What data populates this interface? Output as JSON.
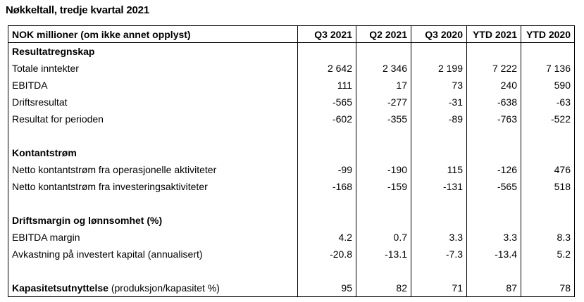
{
  "title": "Nøkkeltall, tredje kvartal 2021",
  "header": {
    "label": "NOK millioner (om ikke annet opplyst)",
    "columns": [
      "Q3 2021",
      "Q2 2021",
      "Q3 2020",
      "YTD 2021",
      "YTD 2020"
    ]
  },
  "sections": {
    "income": {
      "label": "Resultatregnskap",
      "rows": [
        {
          "label": "Totale inntekter",
          "values": [
            "2 642",
            "2 346",
            "2 199",
            "7 222",
            "7 136"
          ]
        },
        {
          "label": "EBITDA",
          "values": [
            "111",
            "17",
            "73",
            "240",
            "590"
          ]
        },
        {
          "label": "Driftsresultat",
          "values": [
            "-565",
            "-277",
            "-31",
            "-638",
            "-63"
          ]
        },
        {
          "label": "Resultat for perioden",
          "values": [
            "-602",
            "-355",
            "-89",
            "-763",
            "-522"
          ]
        }
      ]
    },
    "cashflow": {
      "label": "Kontantstrøm",
      "rows": [
        {
          "label": "Netto kontantstrøm fra operasjonelle aktiviteter",
          "values": [
            "-99",
            "-190",
            "115",
            "-126",
            "476"
          ]
        },
        {
          "label": "Netto kontantstrøm fra investeringsaktiviteter",
          "values": [
            "-168",
            "-159",
            "-131",
            "-565",
            "518"
          ]
        }
      ]
    },
    "margin": {
      "label": "Driftsmargin og lønnsomhet (%)",
      "rows": [
        {
          "label": "EBITDA margin",
          "values": [
            "4.2",
            "0.7",
            "3.3",
            "3.3",
            "8.3"
          ]
        },
        {
          "label": "Avkastning på investert kapital (annualisert)",
          "values": [
            "-20.8",
            "-13.1",
            "-7.3",
            "-13.4",
            "5.2"
          ]
        }
      ]
    },
    "capacity": {
      "label_bold": "Kapasitetsutnyttelse",
      "label_rest": " (produksjon/kapasitet %)",
      "values": [
        "95",
        "82",
        "71",
        "87",
        "78"
      ]
    }
  }
}
